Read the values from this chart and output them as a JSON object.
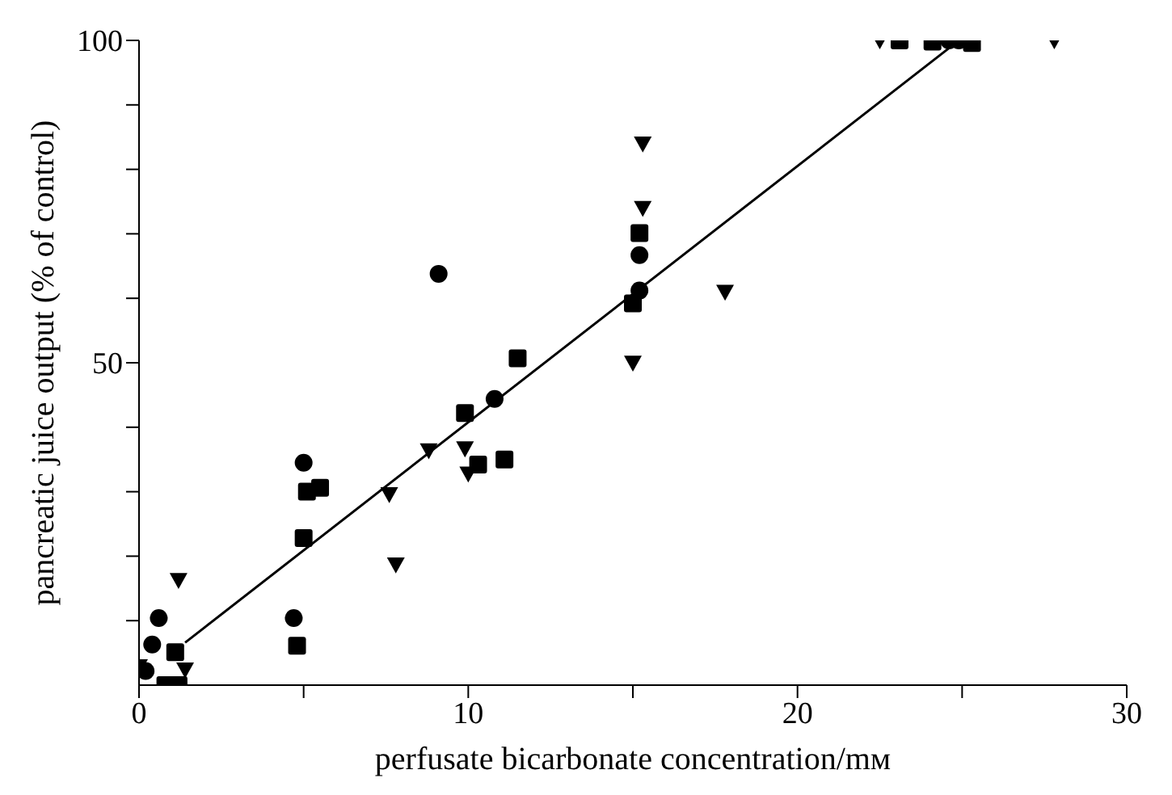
{
  "chart_data": {
    "type": "scatter",
    "xlabel": "perfusate bicarbonate concentration/mᴍ",
    "ylabel": "pancreatic juice output (% of control)",
    "xlim": [
      0,
      30
    ],
    "ylim": [
      0,
      100
    ],
    "xticks": [
      0,
      {
        "value": 5,
        "label": null
      },
      10,
      {
        "value": 15,
        "label": null
      },
      20,
      {
        "value": 25,
        "label": null
      },
      30
    ],
    "yticks": [
      {
        "value": 10,
        "label": null
      },
      {
        "value": 20,
        "label": null
      },
      {
        "value": 30,
        "label": null
      },
      {
        "value": 40,
        "label": null
      },
      50,
      {
        "value": 60,
        "label": null
      },
      {
        "value": 70,
        "label": null
      },
      {
        "value": 80,
        "label": null
      },
      {
        "value": 90,
        "label": null
      },
      100
    ],
    "grid": false,
    "legend": false,
    "series": [
      {
        "marker": "circle",
        "color": "#000000",
        "x": [
          0.6,
          0.4,
          0.2,
          4.7,
          5.0,
          9.1,
          10.8,
          15.2,
          15.2,
          24.6,
          24.9
        ],
        "values": [
          10.4,
          6.3,
          2.2,
          10.4,
          34.5,
          63.8,
          44.4,
          66.7,
          61.2,
          100,
          100
        ]
      },
      {
        "marker": "square",
        "color": "#000000",
        "x": [
          1.1,
          0.8,
          1.2,
          4.8,
          5.0,
          5.1,
          5.5,
          11.5,
          9.9,
          10.3,
          11.1,
          15.0,
          15.2,
          23.1,
          24.1,
          25.3
        ],
        "values": [
          5.1,
          0,
          0,
          6.1,
          22.8,
          30,
          30.6,
          50.7,
          42.2,
          34.2,
          35,
          59.2,
          70.1,
          100,
          99.8,
          99.6
        ]
      },
      {
        "marker": "triangle",
        "color": "#000000",
        "x": [
          1.2,
          0.0,
          1.4,
          7.8,
          7.6,
          8.8,
          9.9,
          10.0,
          15.0,
          15.3,
          15.3,
          17.8,
          22.5,
          27.8
        ],
        "values": [
          16.3,
          2.9,
          2.4,
          18.7,
          29.6,
          36.4,
          36.7,
          32.8,
          50,
          84,
          74,
          61,
          100,
          100
        ]
      },
      {
        "type": "line",
        "marker": "none",
        "line_style": "solid",
        "color": "#000000",
        "x": [
          1.4,
          24.6
        ],
        "values": [
          6.6,
          98.8
        ]
      }
    ]
  }
}
